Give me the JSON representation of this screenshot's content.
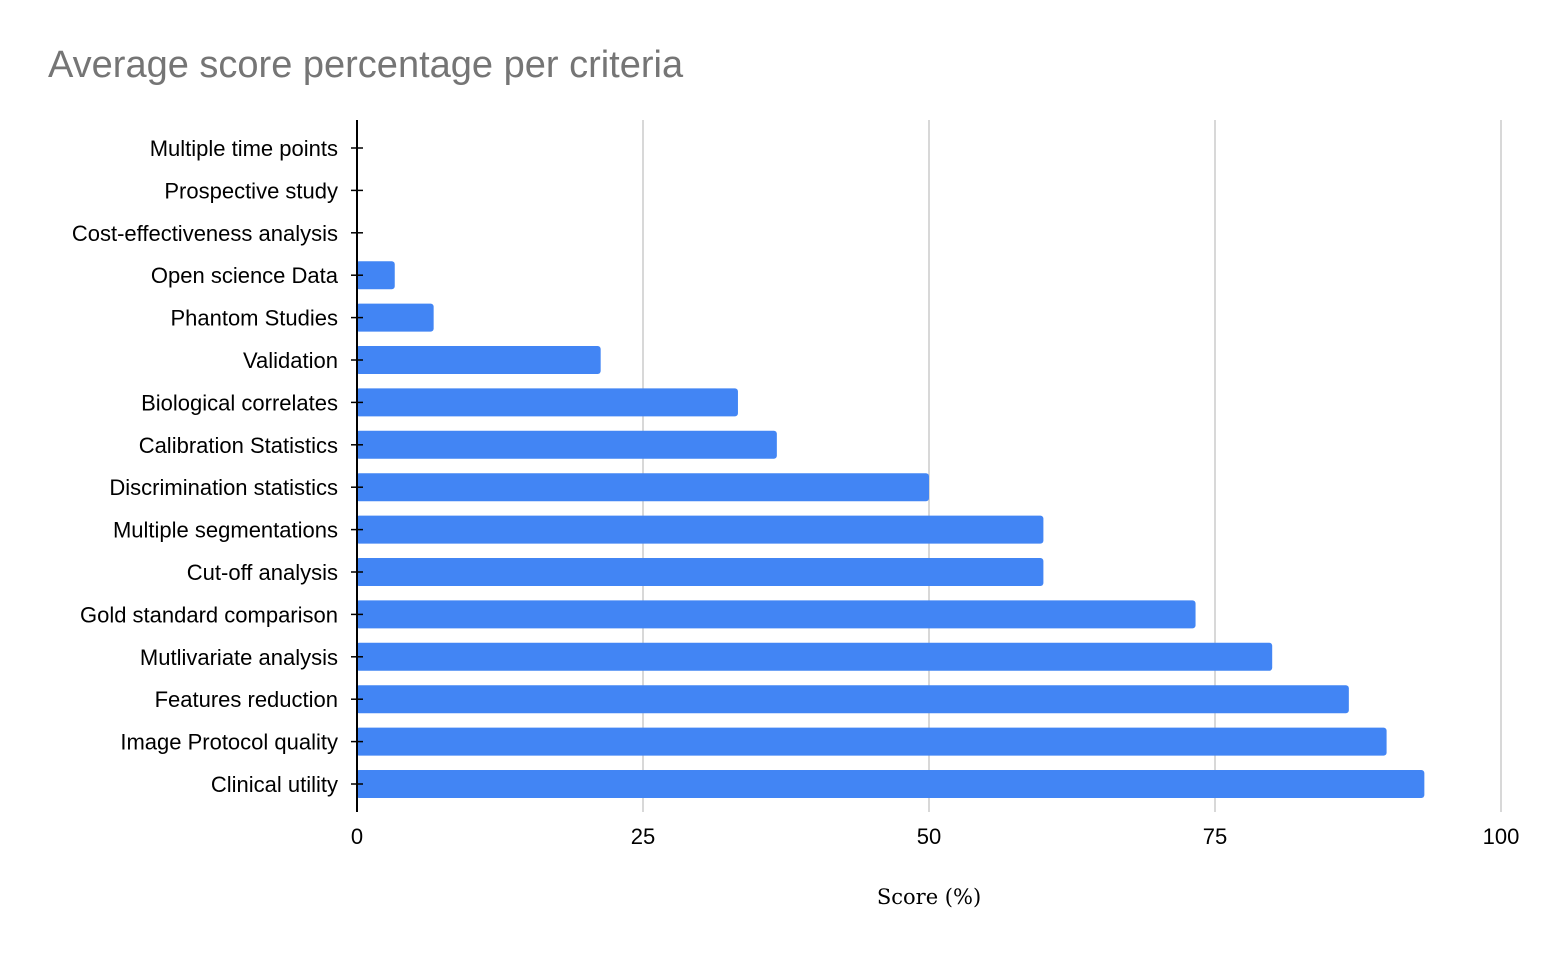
{
  "chart_data": {
    "type": "bar",
    "orientation": "horizontal",
    "title": "Average score percentage per criteria",
    "xlabel": "Score (%)",
    "ylabel": "",
    "xlim": [
      0,
      100
    ],
    "xticks": [
      0,
      25,
      50,
      75,
      100
    ],
    "grid": true,
    "legend": "none",
    "bar_color": "#4285f4",
    "title_color": "#757575",
    "categories": [
      "Multiple time points",
      "Prospective study",
      "Cost-effectiveness analysis",
      "Open science Data",
      "Phantom Studies",
      "Validation",
      "Biological correlates",
      "Calibration Statistics",
      "Discrimination statistics",
      "Multiple segmentations",
      "Cut-off analysis",
      "Gold standard comparison",
      "Mutlivariate analysis",
      "Features reduction",
      "Image Protocol quality",
      "Clinical utility"
    ],
    "values": [
      0,
      0,
      0,
      3.3,
      6.7,
      21.3,
      33.3,
      36.7,
      50,
      60,
      60,
      73.3,
      80,
      86.7,
      90,
      93.3
    ]
  }
}
